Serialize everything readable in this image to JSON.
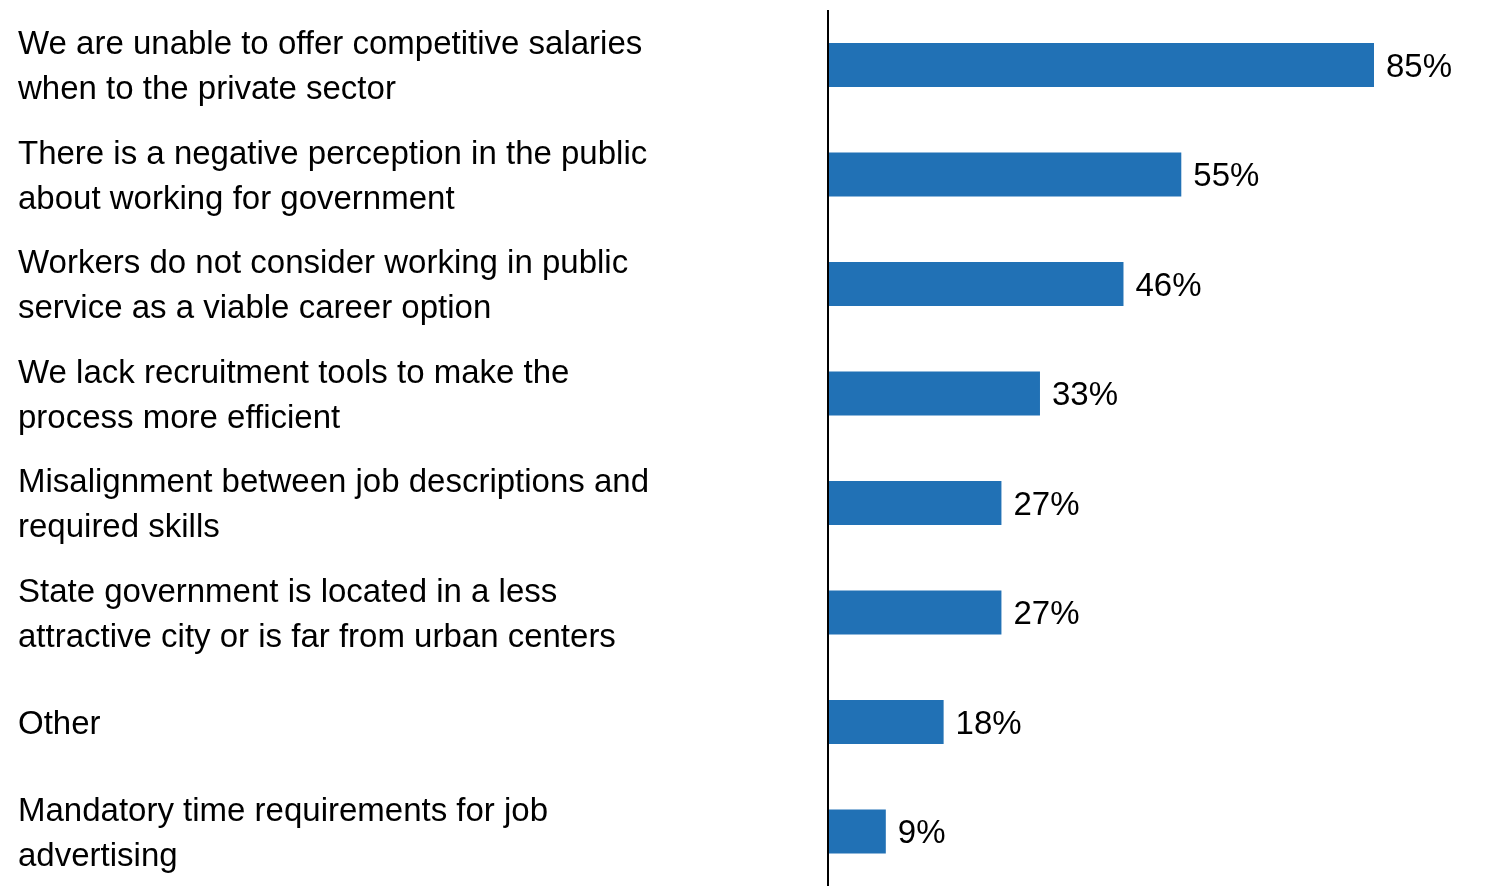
{
  "chart_data": {
    "type": "bar",
    "orientation": "horizontal",
    "categories": [
      "We are unable to offer competitive salaries when to the private sector",
      "There is a negative perception in the public about working for government",
      "Workers do not consider working in public service as a viable career option",
      "We lack recruitment tools to make the process more efficient",
      "Misalignment between job descriptions and required skills",
      "State government is located in a less attractive city or is far from urban centers",
      "Other",
      "Mandatory time requirements for job advertising"
    ],
    "values": [
      85,
      55,
      46,
      33,
      27,
      27,
      18,
      9
    ],
    "value_labels": [
      "85%",
      "55%",
      "46%",
      "33%",
      "27%",
      "27%",
      "18%",
      "9%"
    ],
    "color": "#2171b5",
    "tick_labels": "y",
    "grid": false,
    "legend": false
  }
}
